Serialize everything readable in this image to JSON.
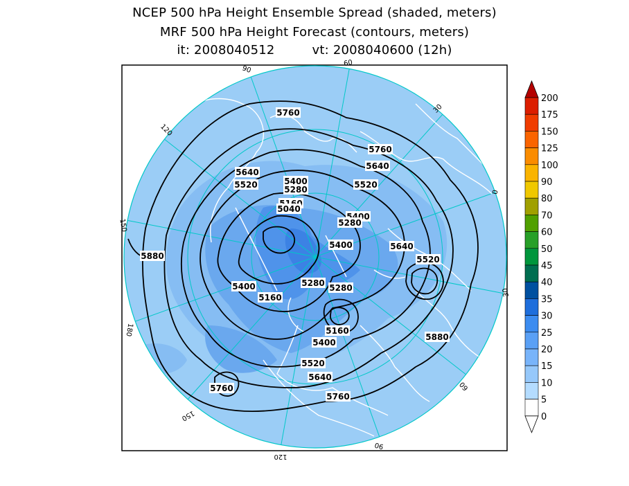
{
  "title": {
    "line1": "NCEP 500 hPa Height Ensemble Spread (shaded, meters)",
    "line2": "MRF 500 hPa Height Forecast (contours, meters)",
    "it_label": "it: 2008040512",
    "vt_label": "vt: 2008040600 (12h)"
  },
  "map": {
    "projection": "north-polar-stereographic",
    "longitude_labels": [
      "60",
      "30",
      "0",
      "30",
      "60",
      "90",
      "120",
      "150",
      "180",
      "150",
      "120",
      "90"
    ],
    "contour_labels": [
      "5760",
      "5760",
      "5640",
      "5640",
      "5520",
      "5520",
      "5400",
      "5280",
      "5160",
      "5040",
      "5400",
      "5280",
      "5400",
      "5640",
      "5520",
      "5880",
      "5400",
      "5160",
      "5280",
      "5280",
      "5160",
      "5400",
      "5880",
      "5520",
      "5640",
      "5760",
      "5760"
    ],
    "colors": {
      "background_ocean": "#9bcdf6",
      "domain_border": "#00c8c8",
      "coastline": "#ffffff",
      "contour": "#000000"
    }
  },
  "legend": {
    "labels": [
      "200",
      "175",
      "150",
      "125",
      "100",
      "90",
      "80",
      "70",
      "60",
      "50",
      "45",
      "40",
      "35",
      "30",
      "25",
      "20",
      "15",
      "10",
      "5",
      "0"
    ],
    "colors": [
      "#b40000",
      "#dc1e00",
      "#f03c00",
      "#fa6400",
      "#fa8c00",
      "#fab400",
      "#f0c800",
      "#a0a000",
      "#50a000",
      "#28a028",
      "#00963c",
      "#006e50",
      "#0050a0",
      "#1e6edc",
      "#3c8cf0",
      "#5aa0f5",
      "#78b4fa",
      "#96c8fa",
      "#b4dcff",
      "#ffffff"
    ]
  }
}
